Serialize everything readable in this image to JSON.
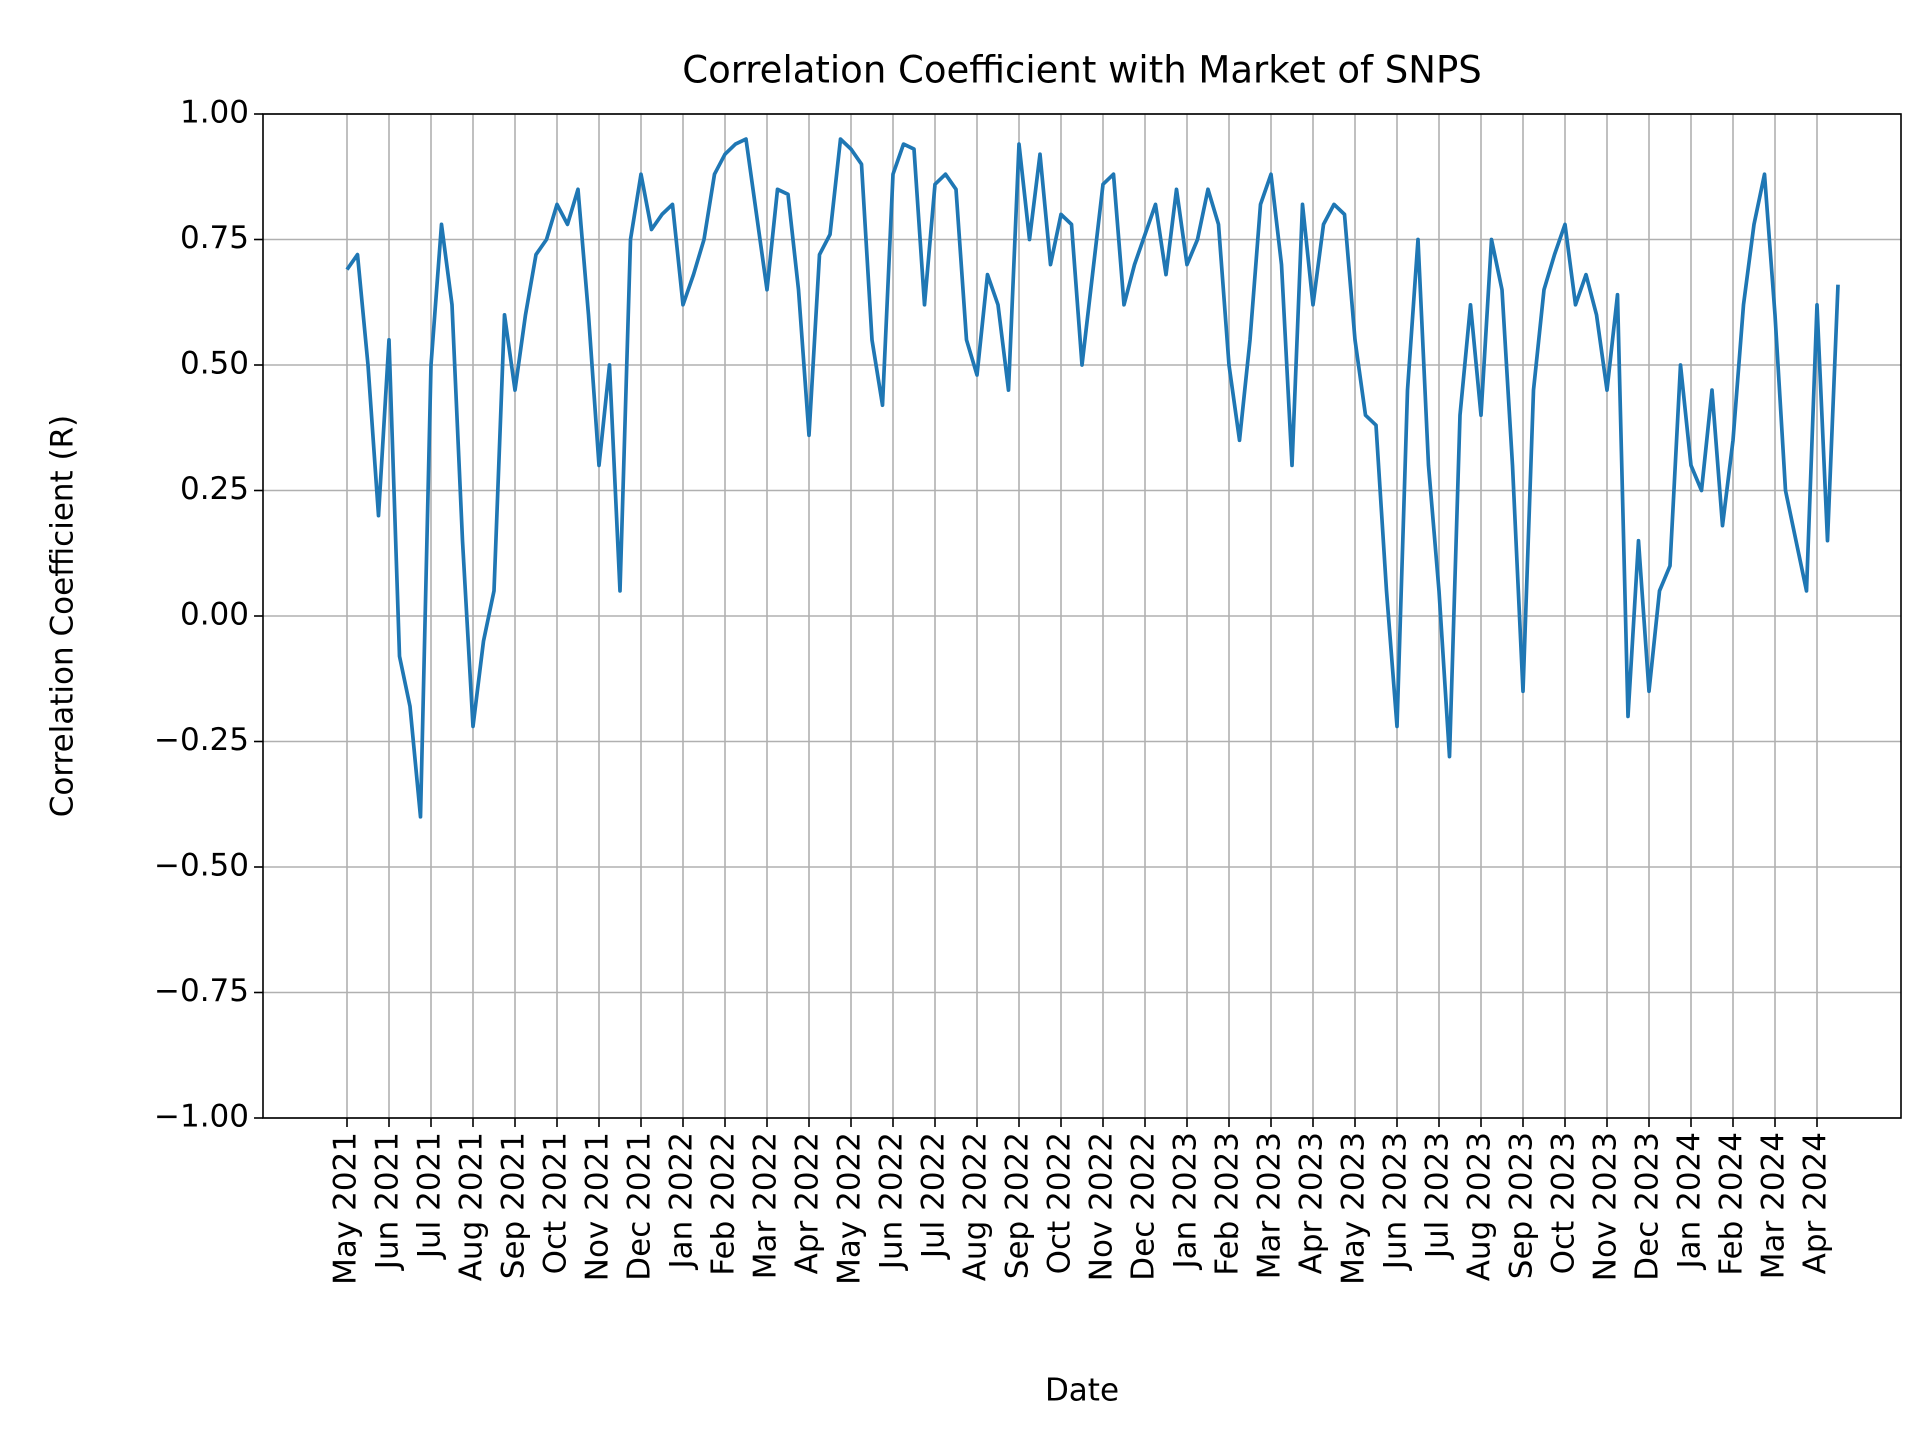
{
  "chart_data": {
    "type": "line",
    "title": "Correlation Coefficient with Market of SNPS",
    "x_label": "Date",
    "y_label": "Correlation Coefficient (R)",
    "color": "#1f77b4",
    "grid": true,
    "xlim": [
      "2021-03",
      "2024-06"
    ],
    "ylim": [
      -1,
      1
    ],
    "yticks": [
      {
        "value": -1,
        "label": "−1.00"
      },
      {
        "value": -0.75,
        "label": "−0.75"
      },
      {
        "value": -0.5,
        "label": "−0.50"
      },
      {
        "value": -0.25,
        "label": "−0.25"
      },
      {
        "value": 0,
        "label": "0.00"
      },
      {
        "value": 0.25,
        "label": "0.25"
      },
      {
        "value": 0.5,
        "label": "0.50"
      },
      {
        "value": 0.75,
        "label": "0.75"
      },
      {
        "value": 1,
        "label": "1.00"
      }
    ],
    "xticks": [
      {
        "value": "2021-05",
        "label": "May 2021"
      },
      {
        "value": "2021-06",
        "label": "Jun 2021"
      },
      {
        "value": "2021-07",
        "label": "Jul 2021"
      },
      {
        "value": "2021-08",
        "label": "Aug 2021"
      },
      {
        "value": "2021-09",
        "label": "Sep 2021"
      },
      {
        "value": "2021-10",
        "label": "Oct 2021"
      },
      {
        "value": "2021-11",
        "label": "Nov 2021"
      },
      {
        "value": "2021-12",
        "label": "Dec 2021"
      },
      {
        "value": "2022-01",
        "label": "Jan 2022"
      },
      {
        "value": "2022-02",
        "label": "Feb 2022"
      },
      {
        "value": "2022-03",
        "label": "Mar 2022"
      },
      {
        "value": "2022-04",
        "label": "Apr 2022"
      },
      {
        "value": "2022-05",
        "label": "May 2022"
      },
      {
        "value": "2022-06",
        "label": "Jun 2022"
      },
      {
        "value": "2022-07",
        "label": "Jul 2022"
      },
      {
        "value": "2022-08",
        "label": "Aug 2022"
      },
      {
        "value": "2022-09",
        "label": "Sep 2022"
      },
      {
        "value": "2022-10",
        "label": "Oct 2022"
      },
      {
        "value": "2022-11",
        "label": "Nov 2022"
      },
      {
        "value": "2022-12",
        "label": "Dec 2022"
      },
      {
        "value": "2023-01",
        "label": "Jan 2023"
      },
      {
        "value": "2023-02",
        "label": "Feb 2023"
      },
      {
        "value": "2023-03",
        "label": "Mar 2023"
      },
      {
        "value": "2023-04",
        "label": "Apr 2023"
      },
      {
        "value": "2023-05",
        "label": "May 2023"
      },
      {
        "value": "2023-06",
        "label": "Jun 2023"
      },
      {
        "value": "2023-07",
        "label": "Jul 2023"
      },
      {
        "value": "2023-08",
        "label": "Aug 2023"
      },
      {
        "value": "2023-09",
        "label": "Sep 2023"
      },
      {
        "value": "2023-10",
        "label": "Oct 2023"
      },
      {
        "value": "2023-11",
        "label": "Nov 2023"
      },
      {
        "value": "2023-12",
        "label": "Dec 2023"
      },
      {
        "value": "2024-01",
        "label": "Jan 2024"
      },
      {
        "value": "2024-02",
        "label": "Feb 2024"
      },
      {
        "value": "2024-03",
        "label": "Mar 2024"
      },
      {
        "value": "2024-04",
        "label": "Apr 2024"
      }
    ],
    "x": [
      "2021-05",
      "2021-05",
      "2021-05",
      "2021-05",
      "2021-06",
      "2021-06",
      "2021-06",
      "2021-06",
      "2021-07",
      "2021-07",
      "2021-07",
      "2021-07",
      "2021-08",
      "2021-08",
      "2021-08",
      "2021-08",
      "2021-09",
      "2021-09",
      "2021-09",
      "2021-09",
      "2021-10",
      "2021-10",
      "2021-10",
      "2021-10",
      "2021-11",
      "2021-11",
      "2021-11",
      "2021-11",
      "2021-12",
      "2021-12",
      "2021-12",
      "2021-12",
      "2022-01",
      "2022-01",
      "2022-01",
      "2022-01",
      "2022-02",
      "2022-02",
      "2022-02",
      "2022-02",
      "2022-03",
      "2022-03",
      "2022-03",
      "2022-03",
      "2022-04",
      "2022-04",
      "2022-04",
      "2022-04",
      "2022-05",
      "2022-05",
      "2022-05",
      "2022-05",
      "2022-06",
      "2022-06",
      "2022-06",
      "2022-06",
      "2022-07",
      "2022-07",
      "2022-07",
      "2022-07",
      "2022-08",
      "2022-08",
      "2022-08",
      "2022-08",
      "2022-09",
      "2022-09",
      "2022-09",
      "2022-09",
      "2022-10",
      "2022-10",
      "2022-10",
      "2022-10",
      "2022-11",
      "2022-11",
      "2022-11",
      "2022-11",
      "2022-12",
      "2022-12",
      "2022-12",
      "2022-12",
      "2023-01",
      "2023-01",
      "2023-01",
      "2023-01",
      "2023-02",
      "2023-02",
      "2023-02",
      "2023-02",
      "2023-03",
      "2023-03",
      "2023-03",
      "2023-03",
      "2023-04",
      "2023-04",
      "2023-04",
      "2023-04",
      "2023-05",
      "2023-05",
      "2023-05",
      "2023-05",
      "2023-06",
      "2023-06",
      "2023-06",
      "2023-06",
      "2023-07",
      "2023-07",
      "2023-07",
      "2023-07",
      "2023-08",
      "2023-08",
      "2023-08",
      "2023-08",
      "2023-09",
      "2023-09",
      "2023-09",
      "2023-09",
      "2023-10",
      "2023-10",
      "2023-10",
      "2023-10",
      "2023-11",
      "2023-11",
      "2023-11",
      "2023-11",
      "2023-12",
      "2023-12",
      "2023-12",
      "2023-12",
      "2024-01",
      "2024-01",
      "2024-01",
      "2024-01",
      "2024-02",
      "2024-02",
      "2024-02",
      "2024-02",
      "2024-03",
      "2024-03",
      "2024-03",
      "2024-03",
      "2024-04",
      "2024-04",
      "2024-04"
    ],
    "values": [
      0.69,
      0.72,
      0.5,
      0.2,
      0.55,
      -0.08,
      -0.18,
      -0.4,
      0.5,
      0.78,
      0.62,
      0.15,
      -0.22,
      -0.05,
      0.05,
      0.6,
      0.45,
      0.6,
      0.72,
      0.75,
      0.82,
      0.78,
      0.85,
      0.6,
      0.3,
      0.5,
      0.05,
      0.75,
      0.88,
      0.77,
      0.8,
      0.82,
      0.62,
      0.68,
      0.75,
      0.88,
      0.92,
      0.94,
      0.95,
      0.8,
      0.65,
      0.85,
      0.84,
      0.65,
      0.36,
      0.72,
      0.76,
      0.95,
      0.93,
      0.9,
      0.55,
      0.42,
      0.88,
      0.94,
      0.93,
      0.62,
      0.86,
      0.88,
      0.85,
      0.55,
      0.48,
      0.68,
      0.62,
      0.45,
      0.94,
      0.75,
      0.92,
      0.7,
      0.8,
      0.78,
      0.5,
      0.68,
      0.86,
      0.88,
      0.62,
      0.7,
      0.76,
      0.82,
      0.68,
      0.85,
      0.7,
      0.75,
      0.85,
      0.78,
      0.5,
      0.35,
      0.55,
      0.82,
      0.88,
      0.7,
      0.3,
      0.82,
      0.62,
      0.78,
      0.82,
      0.8,
      0.55,
      0.4,
      0.38,
      0.05,
      -0.22,
      0.45,
      0.75,
      0.3,
      0.05,
      -0.28,
      0.4,
      0.62,
      0.4,
      0.75,
      0.65,
      0.3,
      -0.15,
      0.45,
      0.65,
      0.72,
      0.78,
      0.62,
      0.68,
      0.6,
      0.45,
      0.64,
      -0.2,
      0.15,
      -0.15,
      0.05,
      0.1,
      0.5,
      0.3,
      0.25,
      0.45,
      0.18,
      0.35,
      0.62,
      0.78,
      0.88,
      0.6,
      0.25,
      0.15,
      0.05,
      0.62,
      0.15,
      0.66
    ]
  }
}
